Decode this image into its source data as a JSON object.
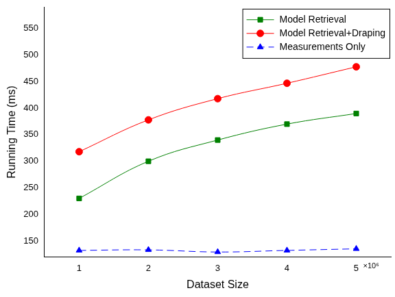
{
  "chart_data": {
    "type": "line",
    "x_label": "Dataset Size",
    "y_label": "Running Time (ms)",
    "annotation": "×10⁶",
    "x": [
      1,
      2,
      3,
      4,
      5
    ],
    "xlim": [
      0.5,
      5.5
    ],
    "xticks": [
      1,
      2,
      3,
      4,
      5
    ],
    "ylim": [
      120,
      590
    ],
    "yticks": [
      150,
      200,
      250,
      300,
      350,
      400,
      450,
      500,
      550
    ],
    "grid": false,
    "legend": "top-right",
    "series": [
      {
        "name": "Model Retrieval",
        "color": "#008000",
        "marker": "square",
        "line_style": "solid",
        "values": [
          230,
          300,
          340,
          370,
          390
        ]
      },
      {
        "name": "Model Retrieval+Draping",
        "color": "#ff0000",
        "marker": "circle",
        "line_style": "solid",
        "values": [
          318,
          378,
          418,
          447,
          478
        ]
      },
      {
        "name": "Measurements Only",
        "color": "#0000ff",
        "marker": "triangle",
        "line_style": "dashed",
        "values": [
          132,
          133,
          129,
          132,
          135
        ]
      }
    ]
  }
}
